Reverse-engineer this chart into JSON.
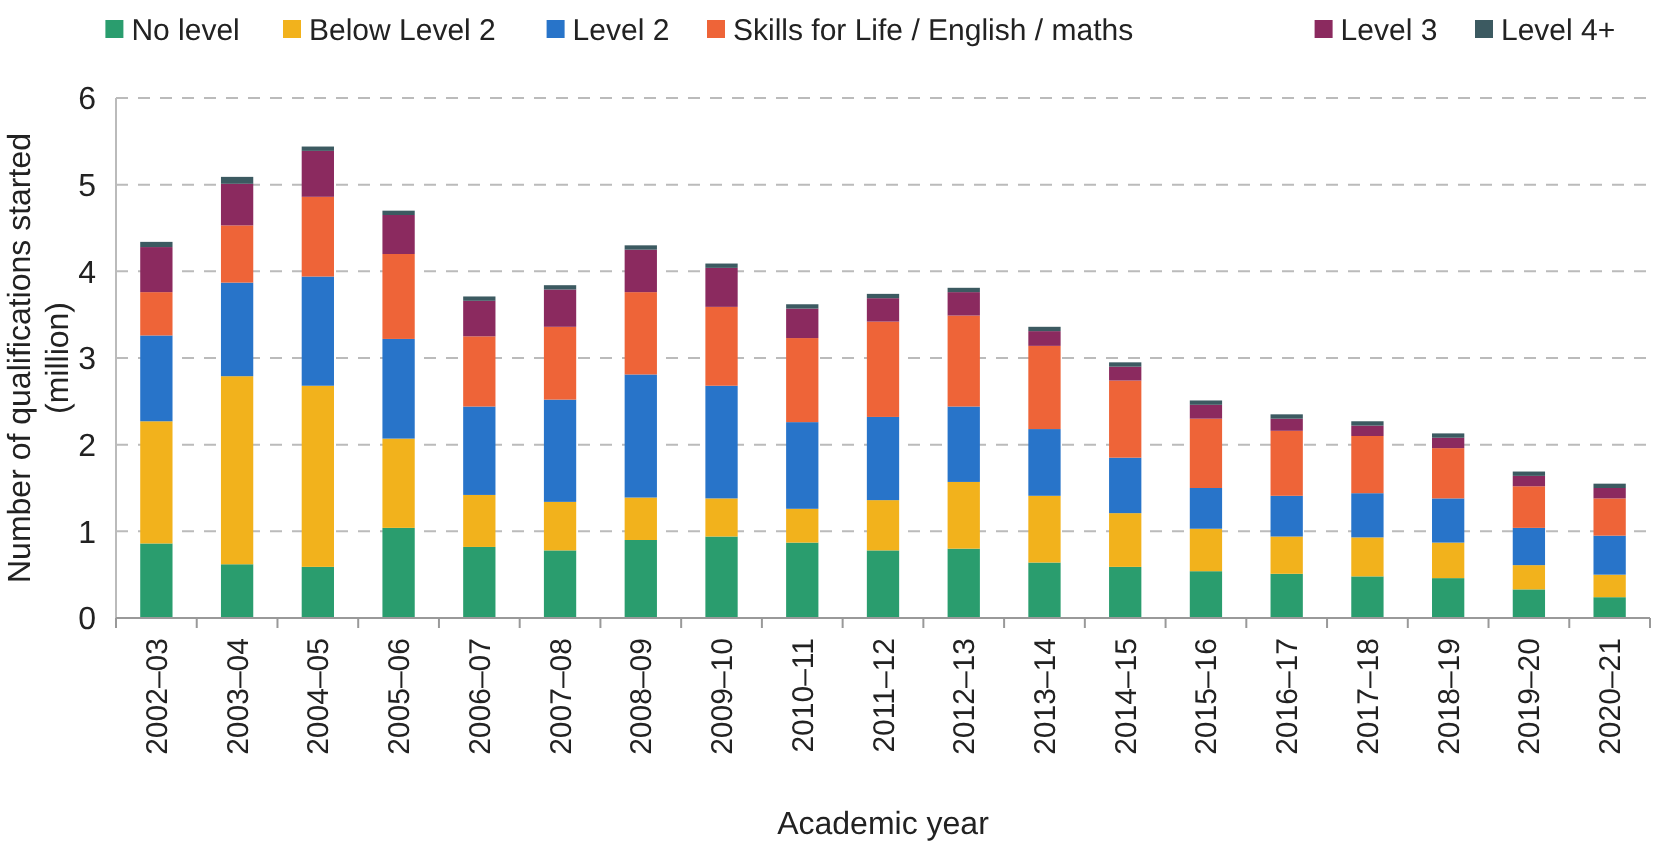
{
  "chart_data": {
    "type": "bar",
    "stacked": true,
    "xlabel": "Academic year",
    "ylabel": "Number of qualifications started (million)",
    "categories": [
      "2002–03",
      "2003–04",
      "2004–05",
      "2005–06",
      "2006–07",
      "2007–08",
      "2008–09",
      "2009–10",
      "2010–11",
      "2011–12",
      "2012–13",
      "2013–14",
      "2014–15",
      "2015–16",
      "2016–17",
      "2017–18",
      "2018–19",
      "2019–20",
      "2020–21"
    ],
    "series": [
      {
        "name": "No level",
        "color": "#2a9d6e",
        "values": [
          0.86,
          0.62,
          0.59,
          1.04,
          0.82,
          0.78,
          0.9,
          0.94,
          0.87,
          0.78,
          0.8,
          0.64,
          0.59,
          0.54,
          0.51,
          0.48,
          0.46,
          0.33,
          0.24
        ]
      },
      {
        "name": "Below Level 2",
        "color": "#f2b21c",
        "values": [
          1.41,
          2.17,
          2.09,
          1.03,
          0.6,
          0.56,
          0.49,
          0.44,
          0.39,
          0.58,
          0.77,
          0.77,
          0.62,
          0.49,
          0.43,
          0.45,
          0.41,
          0.28,
          0.26
        ]
      },
      {
        "name": "Level 2",
        "color": "#2874c9",
        "values": [
          0.99,
          1.08,
          1.26,
          1.15,
          1.02,
          1.18,
          1.42,
          1.3,
          1.0,
          0.96,
          0.87,
          0.77,
          0.64,
          0.47,
          0.47,
          0.51,
          0.51,
          0.43,
          0.45
        ]
      },
      {
        "name": "Skills for Life / English / maths",
        "color": "#ee6438",
        "values": [
          0.5,
          0.66,
          0.92,
          0.98,
          0.81,
          0.84,
          0.95,
          0.91,
          0.97,
          1.1,
          1.05,
          0.96,
          0.89,
          0.8,
          0.75,
          0.66,
          0.58,
          0.48,
          0.43
        ]
      },
      {
        "name": "Level 3",
        "color": "#8b2a5f",
        "values": [
          0.52,
          0.48,
          0.53,
          0.45,
          0.41,
          0.43,
          0.49,
          0.45,
          0.34,
          0.27,
          0.27,
          0.17,
          0.16,
          0.16,
          0.14,
          0.12,
          0.12,
          0.12,
          0.12
        ]
      },
      {
        "name": "Level 4+",
        "color": "#3c5a61",
        "values": [
          0.06,
          0.08,
          0.05,
          0.05,
          0.05,
          0.05,
          0.05,
          0.05,
          0.05,
          0.05,
          0.05,
          0.05,
          0.05,
          0.05,
          0.05,
          0.05,
          0.05,
          0.05,
          0.05
        ]
      }
    ],
    "ylim": [
      0,
      6
    ],
    "yticks": [
      0,
      1,
      2,
      3,
      4,
      5,
      6
    ],
    "grid": "y",
    "legend": "top"
  }
}
